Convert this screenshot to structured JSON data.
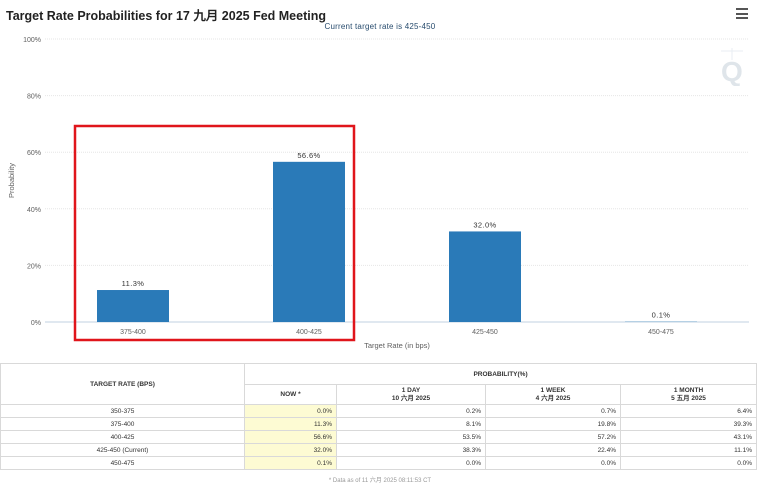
{
  "header": {
    "title": "Target Rate Probabilities for 17 九月 2025 Fed Meeting",
    "subtitle": "Current target rate is 425-450"
  },
  "chart_data": {
    "type": "bar",
    "title": "Target Rate Probabilities for 17 九月 2025 Fed Meeting",
    "subtitle": "Current target rate is 425-450",
    "xlabel": "Target Rate (in bps)",
    "ylabel": "Probability",
    "categories": [
      "375-400",
      "400-425",
      "425-450",
      "450-475"
    ],
    "values": [
      11.3,
      56.6,
      32.0,
      0.1
    ],
    "value_labels": [
      "11.3%",
      "56.6%",
      "32.0%",
      "0.1%"
    ],
    "yticks": [
      "0%",
      "20%",
      "40%",
      "60%",
      "80%",
      "100%"
    ],
    "ylim": [
      0,
      100
    ],
    "grid": true,
    "color": "#2a7ab8",
    "highlight_color": "#e0151b"
  },
  "table": {
    "rate_header": "TARGET RATE (BPS)",
    "prob_header": "PROBABILITY(%)",
    "columns": [
      {
        "line1": "NOW *",
        "line2": ""
      },
      {
        "line1": "1 DAY",
        "line2": "10 六月 2025"
      },
      {
        "line1": "1 WEEK",
        "line2": "4 六月 2025"
      },
      {
        "line1": "1 MONTH",
        "line2": "5 五月 2025"
      }
    ],
    "rows": [
      {
        "rate": "350-375",
        "now": "0.0%",
        "day": "0.2%",
        "week": "0.7%",
        "month": "6.4%"
      },
      {
        "rate": "375-400",
        "now": "11.3%",
        "day": "8.1%",
        "week": "19.8%",
        "month": "39.3%"
      },
      {
        "rate": "400-425",
        "now": "56.6%",
        "day": "53.5%",
        "week": "57.2%",
        "month": "43.1%"
      },
      {
        "rate": "425-450 (Current)",
        "now": "32.0%",
        "day": "38.3%",
        "week": "22.4%",
        "month": "11.1%"
      },
      {
        "rate": "450-475",
        "now": "0.1%",
        "day": "0.0%",
        "week": "0.0%",
        "month": "0.0%"
      }
    ],
    "footnote": "* Data as of 11 六月 2025 08:11:53 CT"
  }
}
